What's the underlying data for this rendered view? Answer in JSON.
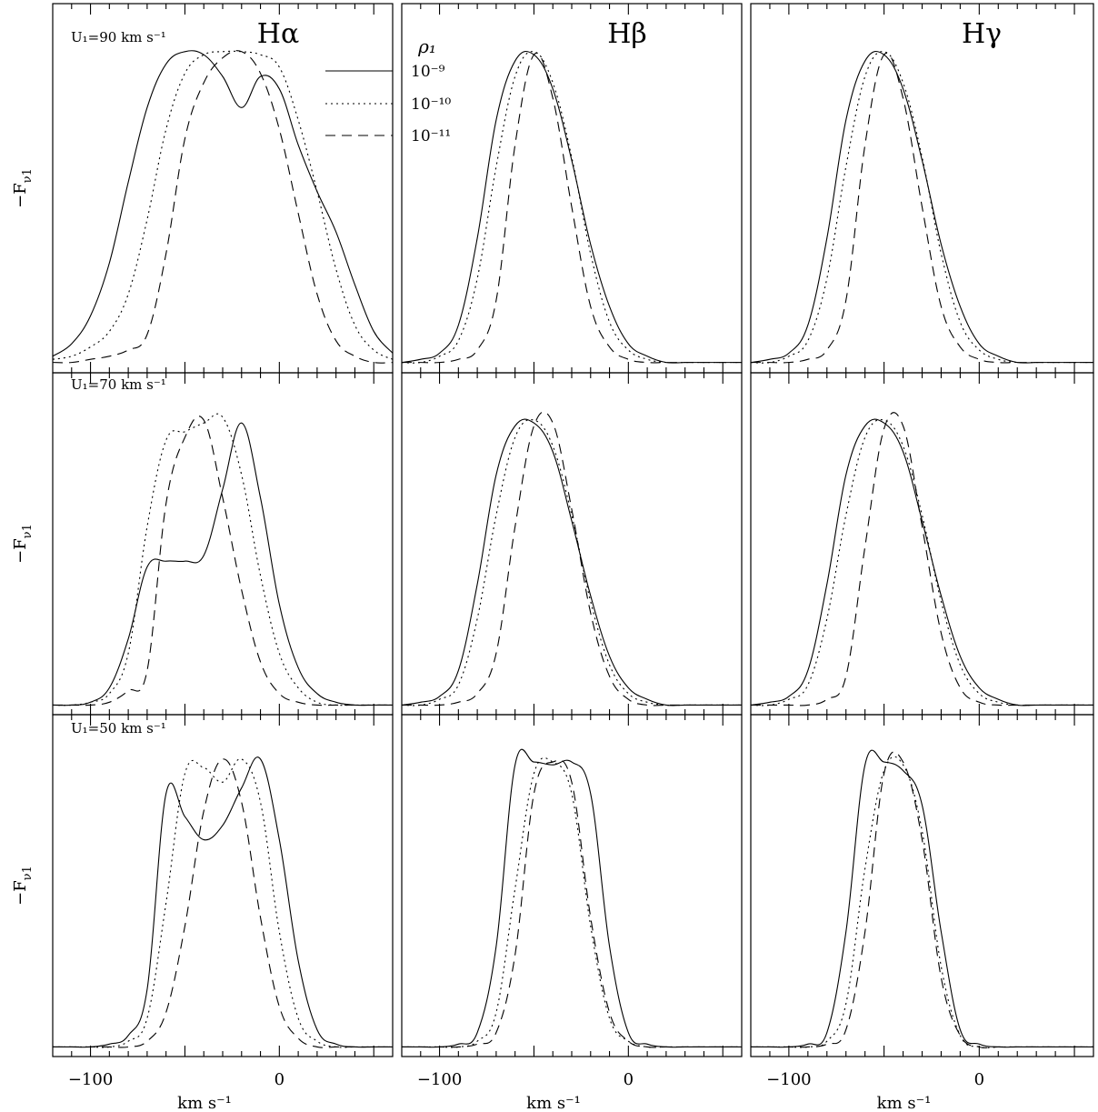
{
  "chart_data": {
    "type": "line",
    "layout": "3x3 grid of panels; rows share y, columns share x",
    "columns": [
      "Hα",
      "Hβ",
      "Hγ"
    ],
    "rows": [
      "U₁=90 km s⁻¹",
      "U₁=70 km s⁻¹",
      "U₁=50 km s⁻¹"
    ],
    "xlabel": "km s⁻¹",
    "ylabel": "−F_ν1",
    "xlim": [
      -120,
      60
    ],
    "xticks_labeled": [
      -100,
      0
    ],
    "ylim": [
      0,
      1.05
    ],
    "grid": false,
    "legend": {
      "title": "ρ₁",
      "placement": "top-center of first panel",
      "entries": [
        {
          "label": "10⁻⁹",
          "style": "solid"
        },
        {
          "label": "10⁻¹⁰",
          "style": "dotted"
        },
        {
          "label": "10⁻¹¹",
          "style": "dashed"
        }
      ]
    },
    "x": [
      -120,
      -110,
      -100,
      -90,
      -80,
      -70,
      -60,
      -50,
      -40,
      -30,
      -20,
      -10,
      0,
      10,
      20,
      30,
      40,
      50,
      60
    ],
    "panels": [
      {
        "row": 0,
        "col": 0,
        "series": [
          {
            "name": "10⁻⁹",
            "style": "solid",
            "values": [
              0.02,
              0.06,
              0.15,
              0.32,
              0.58,
              0.82,
              0.96,
              1.0,
              0.99,
              0.92,
              0.82,
              0.92,
              0.88,
              0.7,
              0.55,
              0.42,
              0.25,
              0.1,
              0.03
            ]
          },
          {
            "name": "10⁻¹⁰",
            "style": "dotted",
            "values": [
              0.01,
              0.02,
              0.05,
              0.1,
              0.22,
              0.46,
              0.75,
              0.93,
              0.99,
              1.0,
              1.0,
              0.99,
              0.95,
              0.78,
              0.55,
              0.3,
              0.12,
              0.04,
              0.01
            ]
          },
          {
            "name": "10⁻¹¹",
            "style": "dashed",
            "values": [
              0.0,
              0.0,
              0.01,
              0.02,
              0.04,
              0.09,
              0.35,
              0.72,
              0.9,
              0.98,
              1.0,
              0.93,
              0.75,
              0.48,
              0.22,
              0.07,
              0.02,
              0.0,
              0.0
            ]
          }
        ]
      },
      {
        "row": 0,
        "col": 1,
        "series": [
          {
            "name": "10⁻⁹",
            "style": "solid",
            "values": [
              0.0,
              0.01,
              0.03,
              0.12,
              0.4,
              0.78,
              0.97,
              0.99,
              0.88,
              0.65,
              0.38,
              0.18,
              0.06,
              0.02,
              0.0,
              0.0,
              0.0,
              0.0,
              0.0
            ]
          },
          {
            "name": "10⁻¹⁰",
            "style": "dotted",
            "values": [
              0.0,
              0.0,
              0.02,
              0.07,
              0.27,
              0.63,
              0.92,
              1.0,
              0.9,
              0.66,
              0.35,
              0.13,
              0.04,
              0.01,
              0.0,
              0.0,
              0.0,
              0.0,
              0.0
            ]
          },
          {
            "name": "10⁻¹¹",
            "style": "dashed",
            "values": [
              0.0,
              0.0,
              0.0,
              0.01,
              0.04,
              0.2,
              0.7,
              0.99,
              0.85,
              0.5,
              0.18,
              0.05,
              0.01,
              0.0,
              0.0,
              0.0,
              0.0,
              0.0,
              0.0
            ]
          }
        ]
      },
      {
        "row": 0,
        "col": 2,
        "series": [
          {
            "name": "10⁻⁹",
            "style": "solid",
            "values": [
              0.0,
              0.01,
              0.03,
              0.12,
              0.4,
              0.78,
              0.97,
              0.99,
              0.88,
              0.65,
              0.38,
              0.18,
              0.06,
              0.02,
              0.0,
              0.0,
              0.0,
              0.0,
              0.0
            ]
          },
          {
            "name": "10⁻¹⁰",
            "style": "dotted",
            "values": [
              0.0,
              0.0,
              0.02,
              0.07,
              0.27,
              0.63,
              0.92,
              1.0,
              0.9,
              0.66,
              0.35,
              0.13,
              0.04,
              0.01,
              0.0,
              0.0,
              0.0,
              0.0,
              0.0
            ]
          },
          {
            "name": "10⁻¹¹",
            "style": "dashed",
            "values": [
              0.0,
              0.0,
              0.0,
              0.01,
              0.04,
              0.2,
              0.7,
              0.99,
              0.85,
              0.5,
              0.18,
              0.05,
              0.01,
              0.0,
              0.0,
              0.0,
              0.0,
              0.0,
              0.0
            ]
          }
        ]
      },
      {
        "row": 1,
        "col": 0,
        "series": [
          {
            "name": "10⁻⁹",
            "style": "solid",
            "values": [
              0.0,
              0.0,
              0.01,
              0.06,
              0.23,
              0.48,
              0.5,
              0.5,
              0.52,
              0.75,
              0.98,
              0.72,
              0.35,
              0.13,
              0.04,
              0.01,
              0.0,
              0.0,
              0.0
            ]
          },
          {
            "name": "10⁻¹⁰",
            "style": "dotted",
            "values": [
              0.0,
              0.0,
              0.01,
              0.04,
              0.18,
              0.62,
              0.92,
              0.95,
              0.98,
              1.0,
              0.8,
              0.45,
              0.18,
              0.06,
              0.01,
              0.0,
              0.0,
              0.0,
              0.0
            ]
          },
          {
            "name": "10⁻¹¹",
            "style": "dashed",
            "values": [
              0.0,
              0.0,
              0.0,
              0.01,
              0.05,
              0.12,
              0.7,
              0.93,
              0.99,
              0.72,
              0.4,
              0.15,
              0.04,
              0.01,
              0.0,
              0.0,
              0.0,
              0.0,
              0.0
            ]
          }
        ]
      },
      {
        "row": 1,
        "col": 1,
        "series": [
          {
            "name": "10⁻⁹",
            "style": "solid",
            "values": [
              0.0,
              0.01,
              0.03,
              0.12,
              0.42,
              0.8,
              0.97,
              0.98,
              0.88,
              0.64,
              0.38,
              0.17,
              0.06,
              0.02,
              0.0,
              0.0,
              0.0,
              0.0,
              0.0
            ]
          },
          {
            "name": "10⁻¹⁰",
            "style": "dotted",
            "values": [
              0.0,
              0.0,
              0.02,
              0.07,
              0.3,
              0.66,
              0.93,
              0.99,
              0.9,
              0.66,
              0.36,
              0.14,
              0.04,
              0.01,
              0.0,
              0.0,
              0.0,
              0.0,
              0.0
            ]
          },
          {
            "name": "10⁻¹¹",
            "style": "dashed",
            "values": [
              0.0,
              0.0,
              0.0,
              0.01,
              0.04,
              0.18,
              0.62,
              0.97,
              0.98,
              0.68,
              0.32,
              0.1,
              0.02,
              0.0,
              0.0,
              0.0,
              0.0,
              0.0,
              0.0
            ]
          }
        ]
      },
      {
        "row": 1,
        "col": 2,
        "series": [
          {
            "name": "10⁻⁹",
            "style": "solid",
            "values": [
              0.0,
              0.01,
              0.03,
              0.12,
              0.42,
              0.8,
              0.97,
              0.98,
              0.88,
              0.64,
              0.38,
              0.17,
              0.06,
              0.02,
              0.0,
              0.0,
              0.0,
              0.0,
              0.0
            ]
          },
          {
            "name": "10⁻¹⁰",
            "style": "dotted",
            "values": [
              0.0,
              0.0,
              0.02,
              0.07,
              0.3,
              0.66,
              0.93,
              0.99,
              0.9,
              0.66,
              0.36,
              0.14,
              0.04,
              0.01,
              0.0,
              0.0,
              0.0,
              0.0,
              0.0
            ]
          },
          {
            "name": "10⁻¹¹",
            "style": "dashed",
            "values": [
              0.0,
              0.0,
              0.0,
              0.0,
              0.02,
              0.1,
              0.55,
              0.96,
              0.97,
              0.62,
              0.25,
              0.06,
              0.01,
              0.0,
              0.0,
              0.0,
              0.0,
              0.0,
              0.0
            ]
          }
        ]
      },
      {
        "row": 2,
        "col": 0,
        "series": [
          {
            "name": "10⁻⁹",
            "style": "solid",
            "values": [
              0.0,
              0.0,
              0.0,
              0.01,
              0.04,
              0.2,
              0.88,
              0.8,
              0.72,
              0.77,
              0.9,
              1.0,
              0.72,
              0.3,
              0.06,
              0.01,
              0.0,
              0.0,
              0.0
            ]
          },
          {
            "name": "10⁻¹⁰",
            "style": "dotted",
            "values": [
              0.0,
              0.0,
              0.0,
              0.0,
              0.02,
              0.1,
              0.5,
              0.95,
              0.97,
              0.92,
              1.0,
              0.85,
              0.4,
              0.1,
              0.02,
              0.0,
              0.0,
              0.0,
              0.0
            ]
          },
          {
            "name": "10⁻¹¹",
            "style": "dashed",
            "values": [
              0.0,
              0.0,
              0.0,
              0.0,
              0.0,
              0.02,
              0.12,
              0.42,
              0.82,
              1.0,
              0.85,
              0.45,
              0.14,
              0.03,
              0.0,
              0.0,
              0.0,
              0.0,
              0.0
            ]
          }
        ]
      },
      {
        "row": 2,
        "col": 1,
        "series": [
          {
            "name": "10⁻⁹",
            "style": "solid",
            "values": [
              0.0,
              0.0,
              0.0,
              0.01,
              0.05,
              0.35,
              0.98,
              0.99,
              0.98,
              0.99,
              0.88,
              0.35,
              0.05,
              0.01,
              0.0,
              0.0,
              0.0,
              0.0,
              0.0
            ]
          },
          {
            "name": "10⁻¹⁰",
            "style": "dotted",
            "values": [
              0.0,
              0.0,
              0.0,
              0.0,
              0.02,
              0.12,
              0.55,
              0.95,
              0.99,
              0.88,
              0.42,
              0.1,
              0.02,
              0.0,
              0.0,
              0.0,
              0.0,
              0.0,
              0.0
            ]
          },
          {
            "name": "10⁻¹¹",
            "style": "dashed",
            "values": [
              0.0,
              0.0,
              0.0,
              0.0,
              0.01,
              0.05,
              0.32,
              0.88,
              0.99,
              0.92,
              0.45,
              0.12,
              0.02,
              0.0,
              0.0,
              0.0,
              0.0,
              0.0,
              0.0
            ]
          }
        ]
      },
      {
        "row": 2,
        "col": 2,
        "series": [
          {
            "name": "10⁻⁹",
            "style": "solid",
            "values": [
              0.0,
              0.0,
              0.0,
              0.01,
              0.05,
              0.4,
              0.98,
              0.99,
              0.96,
              0.84,
              0.4,
              0.06,
              0.01,
              0.0,
              0.0,
              0.0,
              0.0,
              0.0,
              0.0
            ]
          },
          {
            "name": "10⁻¹⁰",
            "style": "dotted",
            "values": [
              0.0,
              0.0,
              0.0,
              0.0,
              0.02,
              0.15,
              0.62,
              0.96,
              0.98,
              0.75,
              0.28,
              0.04,
              0.0,
              0.0,
              0.0,
              0.0,
              0.0,
              0.0,
              0.0
            ]
          },
          {
            "name": "10⁻¹¹",
            "style": "dashed",
            "values": [
              0.0,
              0.0,
              0.0,
              0.0,
              0.01,
              0.06,
              0.4,
              0.95,
              0.99,
              0.72,
              0.24,
              0.04,
              0.0,
              0.0,
              0.0,
              0.0,
              0.0,
              0.0,
              0.0
            ]
          }
        ]
      }
    ]
  }
}
